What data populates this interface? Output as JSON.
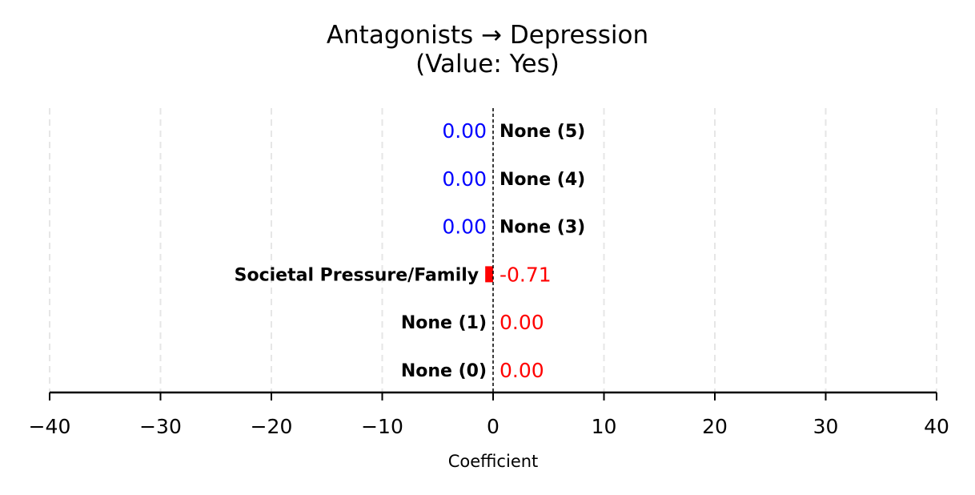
{
  "chart_data": {
    "type": "bar",
    "orientation": "horizontal",
    "title": "Antagonists → Depression",
    "subtitle": "(Value: Yes)",
    "xlabel": "Coefficient",
    "ylabel": "",
    "xlim": [
      -40,
      40
    ],
    "xticks": [
      -40,
      -30,
      -20,
      -10,
      0,
      10,
      20,
      30,
      40
    ],
    "xtick_labels": [
      "−40",
      "−30",
      "−20",
      "−10",
      "0",
      "10",
      "20",
      "30",
      "40"
    ],
    "grid": "vertical dashed",
    "categories": [
      "None (5)",
      "None (4)",
      "None (3)",
      "Societal Pressure/Family",
      "None (1)",
      "None (0)"
    ],
    "values": [
      0.0,
      0.0,
      0.0,
      -0.71,
      0.0,
      0.0
    ],
    "value_labels": [
      "0.00",
      "0.00",
      "0.00",
      "-0.71",
      "0.00",
      "0.00"
    ],
    "value_label_colors": [
      "#0000ff",
      "#0000ff",
      "#0000ff",
      "#ff0000",
      "#ff0000",
      "#ff0000"
    ],
    "bar_color": "#ff0000",
    "zero_line": "dashed black"
  }
}
